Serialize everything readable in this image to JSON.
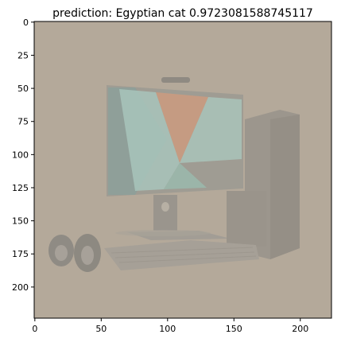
{
  "chart_data": {
    "type": "image",
    "title": "prediction: Egyptian cat 0.9723081588745117",
    "xlabel": "",
    "ylabel": "",
    "xlim": [
      -0.5,
      223.5
    ],
    "ylim": [
      223.5,
      -0.5
    ],
    "x_ticks": [
      0,
      50,
      100,
      150,
      200
    ],
    "y_ticks": [
      0,
      25,
      50,
      75,
      100,
      125,
      150,
      175,
      200
    ],
    "grid": false,
    "image": {
      "width": 224,
      "height": 224,
      "description_colors": {
        "background": "#b3a898",
        "monitor_frame": "#9b958c",
        "screen_left": "#8d9f98",
        "screen_mid_orange": "#c79a80",
        "screen_teal": "#a8c4bb",
        "screen_grey": "#a8aaa0",
        "tower": "#9a948b",
        "keyboard": "#a39d94"
      }
    }
  }
}
